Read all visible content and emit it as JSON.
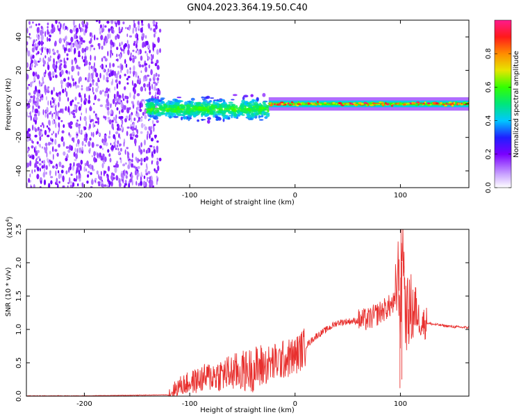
{
  "title": "GN04.2023.364.19.50.C40",
  "chart_data": [
    {
      "type": "heatmap",
      "name": "spectrogram",
      "xlabel": "Height of straight line (km)",
      "ylabel": "Frequency (Hz)",
      "xlim": [
        -255,
        165
      ],
      "ylim": [
        -50,
        50
      ],
      "xticks": [
        -200,
        -100,
        0,
        100
      ],
      "yticks": [
        -40,
        -20,
        0,
        20,
        40
      ],
      "colorbar": {
        "label": "Normalized spectral amplitude",
        "range": [
          0,
          1
        ],
        "ticks": [
          "0.0",
          "0.2",
          "0.4",
          "0.6",
          "0.8"
        ]
      },
      "regions": [
        {
          "x_range": [
            -255,
            -128
          ],
          "description_level": 0.15
        },
        {
          "x_range": [
            -140,
            -25
          ],
          "center_freq_hz": -3,
          "level": 0.5
        },
        {
          "x_range": [
            -25,
            165
          ],
          "center_freq_hz": 0,
          "level": 0.85
        }
      ]
    },
    {
      "type": "line",
      "name": "snr",
      "xlabel": "Height of straight line (km)",
      "ylabel": "SNR (10 * v/v)",
      "yscale_label": "(x10",
      "yscale_exp": "4",
      "yscale_close": ")",
      "xlim": [
        -255,
        165
      ],
      "ylim": [
        0,
        2.5
      ],
      "xticks": [
        -200,
        -100,
        0,
        100
      ],
      "yticks": [
        "0.0",
        "0.5",
        "1.0",
        "1.5",
        "2.0",
        "2.5"
      ],
      "color": "#e8302e",
      "series": [
        {
          "name": "SNR",
          "x": [
            -255,
            -200,
            -120,
            -110,
            -100,
            -80,
            -60,
            -40,
            -30,
            -20,
            -10,
            0,
            10,
            20,
            30,
            40,
            50,
            60,
            70,
            75,
            80,
            85,
            90,
            95,
            98,
            100,
            102,
            105,
            110,
            115,
            120,
            125,
            130,
            140,
            150,
            160,
            165
          ],
          "y": [
            0.005,
            0.005,
            0.02,
            0.15,
            0.2,
            0.3,
            0.35,
            0.4,
            0.45,
            0.5,
            0.55,
            0.6,
            0.75,
            0.9,
            1.0,
            1.1,
            1.12,
            1.13,
            1.15,
            1.2,
            1.25,
            1.3,
            1.35,
            1.4,
            1.9,
            1.1,
            2.5,
            1.2,
            1.3,
            1.25,
            1.1,
            1.1,
            1.08,
            1.06,
            1.04,
            1.03,
            1.03
          ]
        }
      ]
    }
  ]
}
